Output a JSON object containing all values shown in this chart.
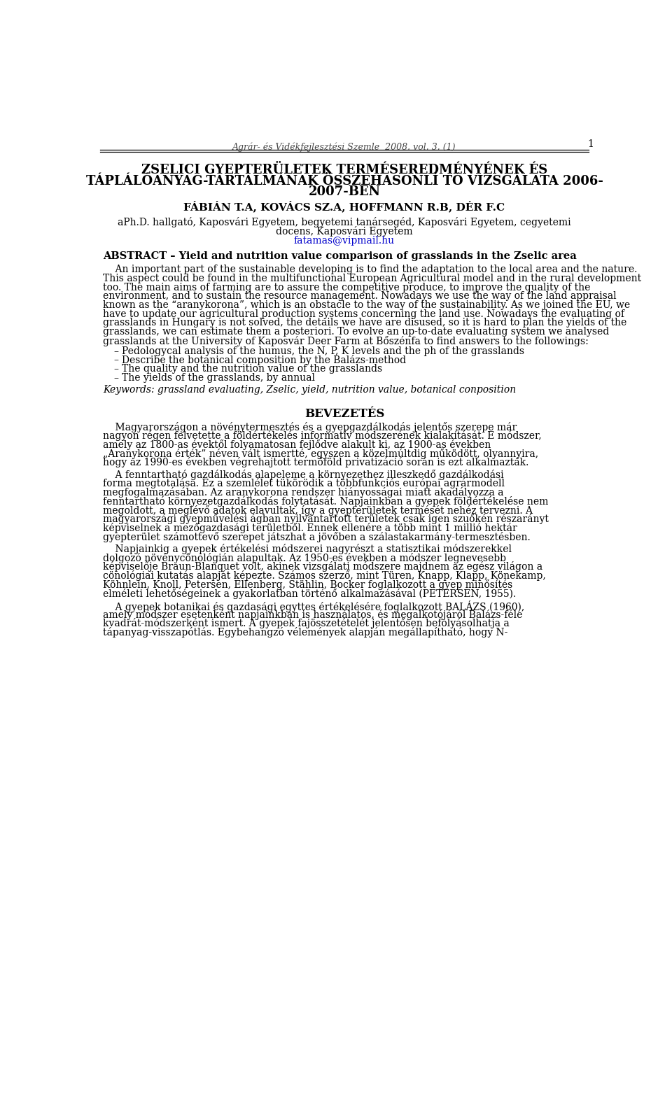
{
  "header_italic": "Agrár- és Vidékfejlesztési Szemle  2008. vol. 3. (1)",
  "page_number": "1",
  "title_line1": "ZSELICI GYEPTERÜLETEK TERMÉSEREDMÉNYÉNEK ÉS",
  "title_line2": "TÁPLÁLÓANYAG-TARTALMÁNAK ÖSSZEHASONLÍ TÓ VIZSGÁLATA 2006-",
  "title_line3": "2007-BEN",
  "authors": "FÁBIÁN T.A, KOVÁCS SZ.A, HOFFMANN R.B, DÉR F.C",
  "affil1": "aPh.D. hallgató, Kaposvári Egyetem, begyetemi tanársegéd, Kaposvári Egyetem, cegyetemi",
  "affil2": "docens, Kaposvári Egyetem",
  "email": "fatamas@vipmail.hu",
  "abstract_heading": "ABSTRACT – Yield and nutrition value comparison of grasslands in the Zselic area",
  "abstract_lines": [
    "    An important part of the sustainable developing is to find the adaptation to the local area and the nature.",
    "This aspect could be found in the multifunctional European Agricultural model and in the rural development",
    "too. The main aims of farming are to assure the competitive produce, to improve the quality of the",
    "environment, and to sustain the resource management. Nowadays we use the way of the land appraisal",
    "known as the “aranykorona”, which is an obstacle to the way of the sustainability. As we joined the EU, we",
    "have to update our agricultural production systems concerning the land use. Nowadays the evaluating of",
    "grasslands in Hungary is not solved, the details we have are disused, so it is hard to plan the yields of the",
    "grasslands, we can estimate them a posteriori. To evolve an up-to-date evaluating system we analysed",
    "grasslands at the University of Kaposvár Deer Farm at Bőszénfa to find answers to the followings:"
  ],
  "bullets": [
    "Pedologycal analysis of the humus, the N, P, K levels and the ph of the grasslands",
    "Describe the botanical composition by the Balázs-method",
    "The quality and the nutrition value of the grasslands",
    "The yields of the grasslands, by annual"
  ],
  "keywords_line": "Keywords: grassland evaluating, Zselic, yield, nutrition value, botanical conposition",
  "section_title": "BEVEZETÉS",
  "para1_lines": [
    "    Magyarországon a növénytermesztés és a gyepgazdálkodás jelentős szerepe már",
    "nagyon régen felvetette a földértékelés informatív módszerének kialakítását. E módszer,",
    "amely az 1800-as évektől folyamatosan fejlődve alakult ki, az 1900-as években",
    "„Aranykorona érték” néven vált ismertté, egyszen a közelmúltdig működött, olyannyira,",
    "hogy az 1990-es években végrehajtott termőföld privatizáció során is ezt alkalmazták."
  ],
  "para2_lines": [
    "    A fenntartható gazdálkodás alapeleme a környezethez illeszkedő gazdálkodási",
    "forma megtotalása. Ez a szemlélet tükörödik a többfunkciós európai agrármodell",
    "megfogalmazásában. Az aranykorona rendszer hiányosságai miatt akadályozza a",
    "fenntartható környezetgazdálkodás folytatását. Napjainkban a gyepek földértékelése nem",
    "megoldott, a meglévő adatok elavultak, így a gyepterületek termését nehéz tervezni. A",
    "magyarországi gyepművelési ágban nyilvántartott területek csak igen szuőkén részarányt",
    "képviselnek a mezőgazdasági területből. Ennek ellenére a több mint 1 millió hektár",
    "gyepterület számottevő szerepet játszhat a jövőben a szálastakarmány-termesztésben."
  ],
  "para3_lines": [
    "    Napjainkig a gyepek értékelési módszerei nagyrészt a statisztikai módszerekkel",
    "dolgozó növénycönológián alapultak. Az 1950-es években a módszer legnevesebb",
    "képviselője Braun-Blanquet volt, akinek vizsgálati módszere majdnem az egész világon a",
    "cönológiai kutatás alapját képezte. Számos szerző, mint Türen, Knapp, Klapp, Könekamp,",
    "Köhnlein, Knoll, Petersen, Ellenberg, Stählin, Bocker foglalkozott a gyep minősítés",
    "elméleti lehetőségeinek a gyakorlatban történő alkalmazásával (PETERSEN, 1955)."
  ],
  "para4_lines": [
    "    A gyepek botanikai és gazdasági egyttes értékelésére foglalkozott BALÁZS (1960),",
    "amely módszer esetenként napjainkban is használatos, és megalkotójáról Balázs-féle",
    "kvadrát-módszerként ismert. A gyepek fajösszetételét jelentősen befolyásolhatja a",
    "tápanyag-visszapótlás. Egybehangzó vélemények alapján megállapítható, hogy N-"
  ]
}
